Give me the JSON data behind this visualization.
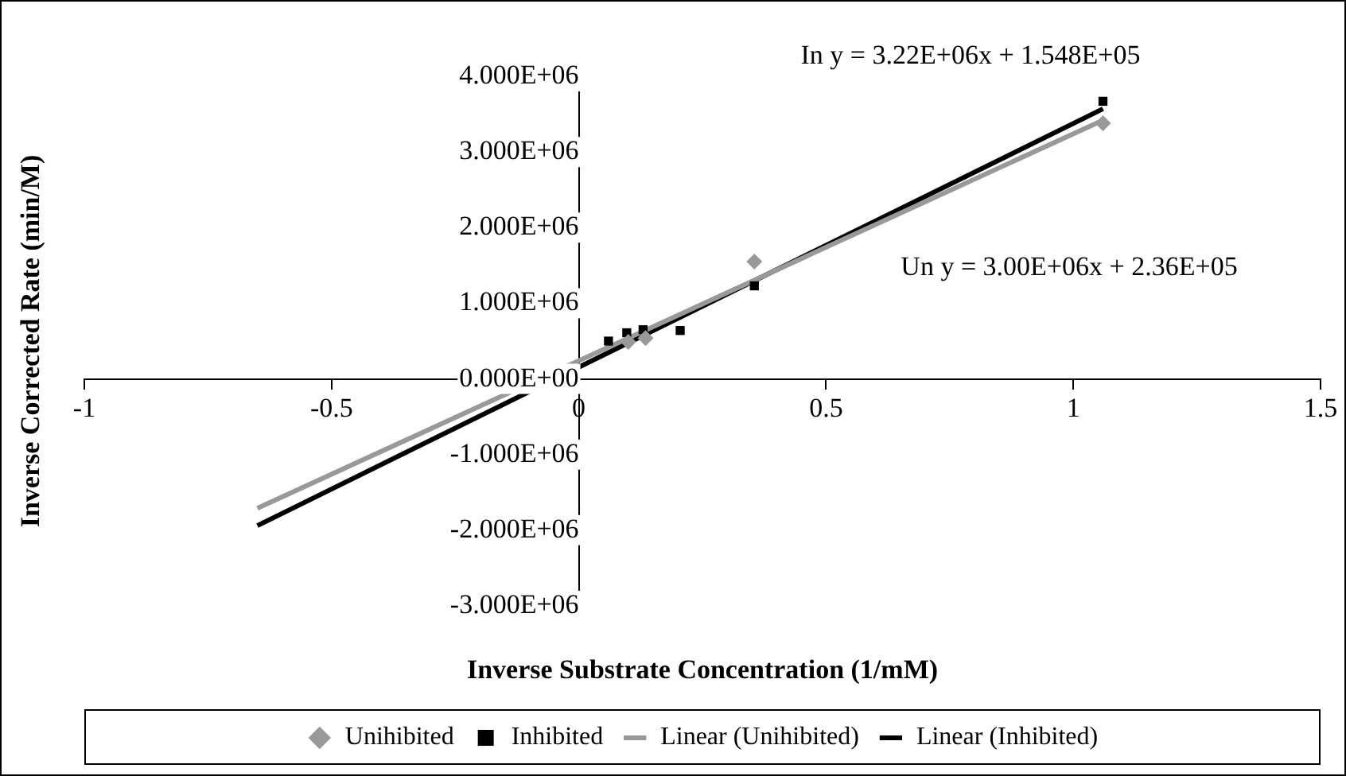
{
  "chart_data": {
    "type": "scatter",
    "xlabel": "Inverse Substrate Concentration (1/mM)",
    "ylabel": "Inverse Corrected Rate (min/M)",
    "xlim": [
      -1,
      1.5
    ],
    "xticks": [
      -1,
      -0.5,
      0,
      0.5,
      1,
      1.5
    ],
    "ylim": [
      -3000000,
      4000000
    ],
    "yticks": [
      {
        "value": -3000000,
        "label": "-3.000E+06"
      },
      {
        "value": -2000000,
        "label": "-2.000E+06"
      },
      {
        "value": -1000000,
        "label": "-1.000E+06"
      },
      {
        "value": 0,
        "label": "0.000E+00"
      },
      {
        "value": 1000000,
        "label": "1.000E+06"
      },
      {
        "value": 2000000,
        "label": "2.000E+06"
      },
      {
        "value": 3000000,
        "label": "3.000E+06"
      },
      {
        "value": 4000000,
        "label": "4.000E+06"
      }
    ],
    "grid": false,
    "legend": "bottom",
    "series": [
      {
        "name": "Unihibited",
        "type": "scatter",
        "marker": "diamond",
        "color": "#999999",
        "x": [
          0.1,
          0.135,
          0.355,
          1.06
        ],
        "values": [
          490000,
          540000,
          1550000,
          3380000
        ]
      },
      {
        "name": "Inhibited",
        "type": "scatter",
        "marker": "square",
        "color": "#000000",
        "x": [
          0.06,
          0.097,
          0.13,
          0.205,
          0.355,
          1.06
        ],
        "values": [
          500000,
          610000,
          650000,
          640000,
          1230000,
          3670000
        ]
      },
      {
        "name": "Linear (Unihibited)",
        "type": "line",
        "marker": "none",
        "color": "#999999",
        "x": [
          -0.65,
          1.06
        ],
        "values": [
          -1710000,
          3420000
        ]
      },
      {
        "name": "Linear (Inhibited)",
        "type": "line",
        "marker": "none",
        "color": "#000000",
        "x": [
          -0.65,
          1.06
        ],
        "values": [
          -1940000,
          3570000
        ]
      }
    ],
    "annotations": [
      "In y = 3.22E+06x + 1.548E+05",
      "Un y = 3.00E+06x + 2.36E+05"
    ]
  }
}
